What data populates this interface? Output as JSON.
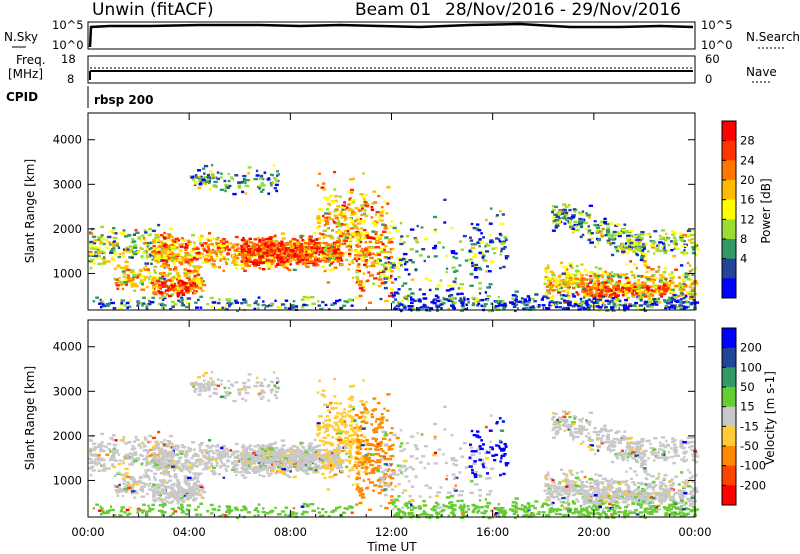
{
  "header": {
    "radar": "Unwin (fitACF)",
    "beam": "Beam 01",
    "date_range": "28/Nov/2016 - 29/Nov/2016"
  },
  "panels": {
    "nsky": {
      "label": "N.Sky",
      "right_label": "N.Search",
      "ticks": [
        "10^5",
        "10^0"
      ]
    },
    "freq": {
      "label_line1": "Freq.",
      "label_line2": "[MHz]",
      "right_label": "Nave",
      "left_ticks": [
        "18",
        "8"
      ],
      "right_ticks": [
        "60",
        "0"
      ]
    },
    "cpid": {
      "label": "CPID",
      "value": "rbsp 200"
    }
  },
  "chart_data": [
    {
      "type": "heatmap",
      "name": "power",
      "ylabel": "Slant Range [km]",
      "xlabel": "",
      "y_ticks": [
        1000,
        2000,
        3000,
        4000
      ],
      "ylim": [
        180,
        4600
      ],
      "xlim_hours": [
        0,
        24
      ],
      "colorbar": {
        "label": "Power [dB]",
        "ticks": [
          "28",
          "24",
          "20",
          "16",
          "12",
          "8",
          "4"
        ],
        "colors": [
          "#ff0000",
          "#ff3300",
          "#ff7700",
          "#ffbb00",
          "#ffff00",
          "#99dd33",
          "#339966",
          "#224499",
          "#0000ff"
        ]
      }
    },
    {
      "type": "heatmap",
      "name": "velocity",
      "ylabel": "Slant Range [km]",
      "xlabel": "Time UT",
      "x_ticks": [
        "00:00",
        "04:00",
        "08:00",
        "12:00",
        "16:00",
        "20:00",
        "00:00"
      ],
      "y_ticks": [
        1000,
        2000,
        3000,
        4000
      ],
      "ylim": [
        180,
        4600
      ],
      "xlim_hours": [
        0,
        24
      ],
      "colorbar": {
        "label": "Velocity [m s-1]",
        "ticks": [
          "200",
          "100",
          "50",
          "15",
          "-15",
          "-50",
          "-100",
          "-200"
        ],
        "colors": [
          "#0000ff",
          "#224499",
          "#339966",
          "#66cc33",
          "#c8c8c8",
          "#ffcc33",
          "#ff8800",
          "#ff4400",
          "#ff0000"
        ]
      }
    }
  ]
}
